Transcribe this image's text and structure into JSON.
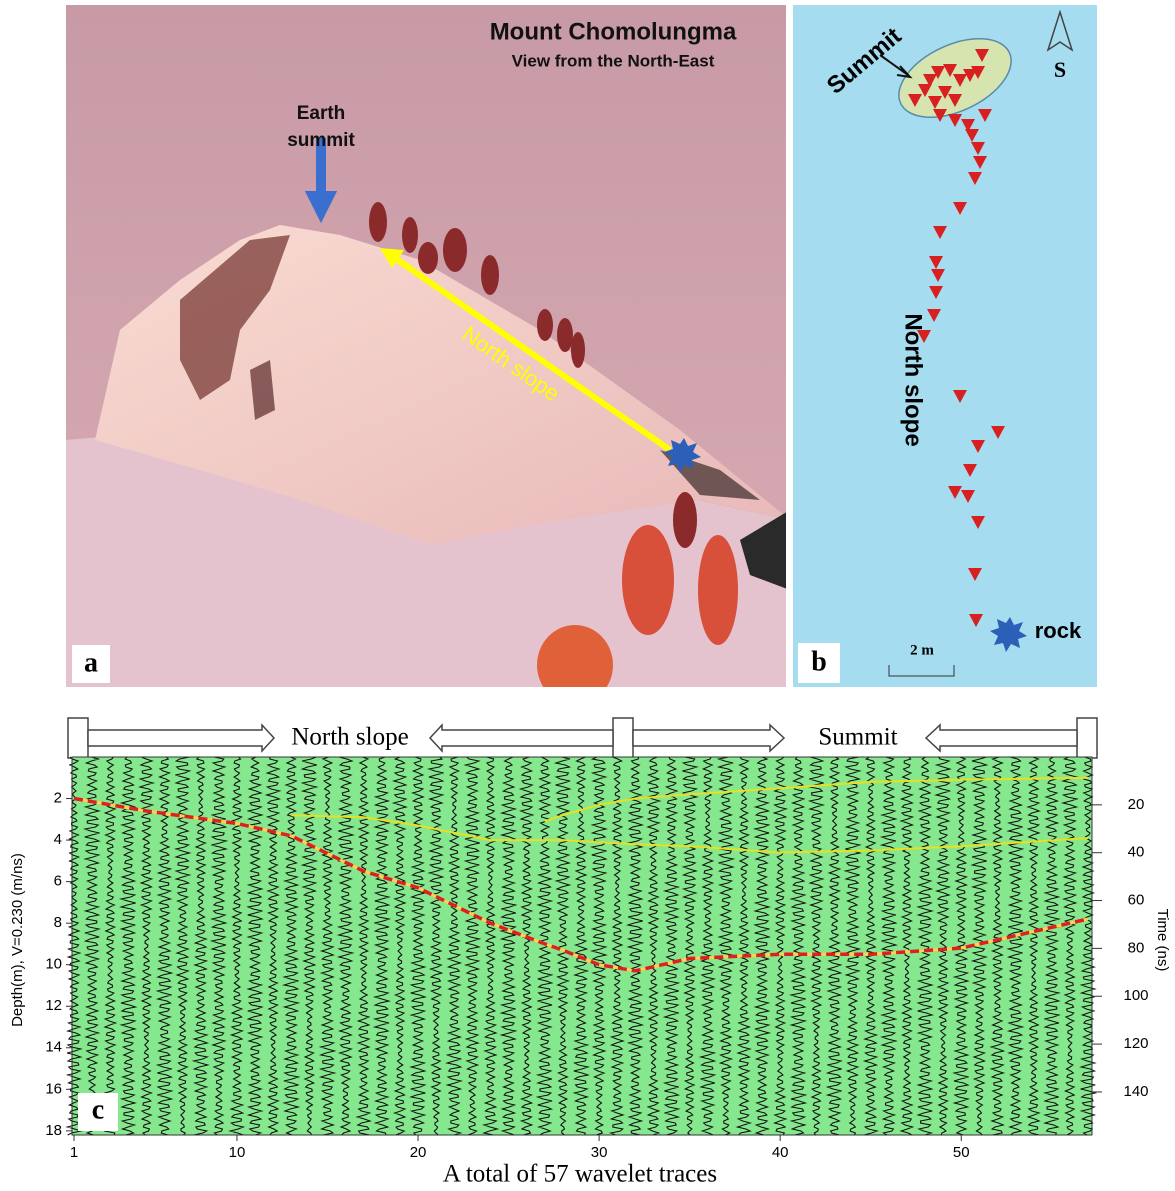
{
  "photo": {
    "title": "Mount Chomolungma",
    "subtitle": "View from the North-East",
    "summit_label": "Earth summit",
    "slope_label": "North slope",
    "panel": "a"
  },
  "map": {
    "summit_label": "Summit",
    "north_label": "S",
    "slope_label": "North slope",
    "rock_label": "rock",
    "scale_label": "2 m",
    "panel": "b"
  },
  "chart_data": {
    "type": "line",
    "panel": "c",
    "header": [
      "North slope",
      "Summit"
    ],
    "xlabel": "A total of 57 wavelet traces",
    "ylabel": "Depth(m), V=0.230 (m/ns)",
    "y2label": "Time (ns)",
    "x": [
      1,
      5,
      10,
      13,
      17,
      20,
      24,
      27,
      28,
      30,
      32,
      35,
      40,
      45,
      50,
      57
    ],
    "series": [
      {
        "color": "#e02020",
        "dashed": true,
        "values": [
          2.0,
          2.6,
          3.2,
          3.8,
          5.5,
          6.3,
          8.0,
          9.0,
          9.3,
          10.0,
          10.3,
          9.7,
          9.5,
          9.5,
          9.2,
          7.8
        ]
      },
      {
        "color": "#e8e020",
        "dashed": false,
        "values": [
          null,
          null,
          null,
          2.8,
          2.9,
          3.3,
          4.0,
          4.0,
          4.0,
          4.1,
          4.2,
          4.3,
          4.6,
          4.5,
          4.3,
          3.9
        ]
      },
      {
        "color": "#e8e020",
        "dashed": false,
        "values": [
          null,
          null,
          null,
          null,
          null,
          null,
          null,
          3.1,
          2.8,
          2.3,
          2.0,
          1.8,
          1.5,
          1.2,
          1.1,
          1.0
        ]
      }
    ],
    "xlim": [
      1,
      57
    ],
    "xticks": [
      1,
      10,
      20,
      30,
      40,
      50
    ],
    "ylim": [
      0,
      18.2
    ],
    "yticks": [
      2,
      4,
      6,
      8,
      10,
      12,
      14,
      16,
      18
    ],
    "y2lim": [
      0,
      158
    ],
    "y2ticks": [
      20,
      40,
      60,
      80,
      100,
      120,
      140
    ],
    "background": "#86e88e"
  }
}
